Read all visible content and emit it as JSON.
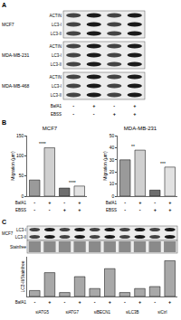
{
  "panels": {
    "A": {
      "label": "A",
      "blots": [
        {
          "cell_line": "MCF7",
          "bands": [
            "ACTIN",
            "LC3-I",
            "LC3-II"
          ]
        },
        {
          "cell_line": "MDA-MB-231",
          "bands": [
            "ACTIN",
            "LC3-I",
            "LC3-II"
          ]
        },
        {
          "cell_line": "MDA-MB-468",
          "bands": [
            "ACTIN",
            "LC3-I",
            "LC3-II"
          ]
        }
      ],
      "conditions": [
        {
          "name": "BafA1",
          "values": [
            "-",
            "+",
            "-",
            "+"
          ]
        },
        {
          "name": "EBSS",
          "values": [
            "-",
            "-",
            "+",
            "+"
          ]
        }
      ]
    },
    "B": {
      "label": "B",
      "conditions": [
        {
          "name": "BafA1",
          "values": [
            "-",
            "+",
            "-",
            "+"
          ]
        },
        {
          "name": "EBSS",
          "values": [
            "-",
            "-",
            "+",
            "+"
          ]
        }
      ]
    },
    "C": {
      "label": "C",
      "blot": {
        "cell_line": "MCF7",
        "bands": [
          "LC3-I",
          "LC3-II",
          "Stainfree"
        ]
      },
      "conditions": [
        {
          "name": "BafA1",
          "values": [
            "-",
            "+",
            "-",
            "+",
            "-",
            "+",
            "-",
            "+",
            "-",
            "+"
          ]
        }
      ],
      "groups": [
        "siATG5",
        "siATG7",
        "siBECN1",
        "siLC3B",
        "siCtrl"
      ]
    }
  },
  "chart_data": [
    {
      "type": "bar",
      "title": "MCF7",
      "y_label": "Migration (µm)",
      "categories": [
        null,
        null,
        null,
        null
      ],
      "values": [
        40,
        120,
        20,
        25
      ],
      "colors": [
        "#9a9a9a",
        "#d0d0d0",
        "#6e6e6e",
        "#e2e2e2"
      ],
      "ylim": [
        0,
        150
      ],
      "yticks": [
        0,
        50,
        100,
        150
      ],
      "tick_labels": "y",
      "annotations": [
        {
          "text": "****",
          "categories": [
            0,
            1
          ]
        },
        {
          "text": "****",
          "categories": [
            2,
            3
          ]
        }
      ]
    },
    {
      "type": "bar",
      "title": "MDA-MB-231",
      "y_label": "Migration (µm)",
      "categories": [
        null,
        null,
        null,
        null
      ],
      "values": [
        30,
        38,
        5,
        24
      ],
      "colors": [
        "#9a9a9a",
        "#d0d0d0",
        "#6e6e6e",
        "#e2e2e2"
      ],
      "ylim": [
        0,
        50
      ],
      "yticks": [
        0,
        10,
        20,
        30,
        40,
        50
      ],
      "tick_labels": "y",
      "annotations": [
        {
          "text": "**",
          "categories": [
            0,
            1
          ]
        },
        {
          "text": "***",
          "categories": [
            2,
            3
          ]
        }
      ]
    },
    {
      "type": "bar",
      "y_label": "LC3-II/Stainfree",
      "categories": [
        null,
        null,
        null,
        null,
        null,
        null,
        null,
        null,
        null,
        null
      ],
      "values": [
        0.15,
        0.6,
        0.1,
        0.5,
        0.2,
        0.7,
        0.1,
        0.2,
        0.25,
        0.9
      ],
      "color": "#a8a8a8",
      "ylim": [
        0,
        1
      ],
      "tick_labels": false
    }
  ]
}
